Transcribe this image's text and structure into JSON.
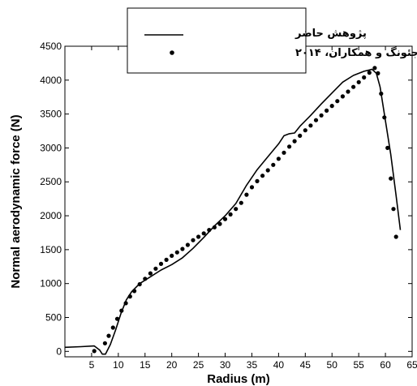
{
  "chart_data": {
    "type": "line",
    "xlabel": "Radius (m)",
    "ylabel": "Normal aerodynamic force (N)",
    "xlim": [
      0,
      65
    ],
    "ylim": [
      -80,
      4500
    ],
    "x_ticks": [
      5,
      10,
      15,
      20,
      25,
      30,
      35,
      40,
      45,
      50,
      55,
      60,
      65
    ],
    "y_ticks": [
      0,
      500,
      1000,
      1500,
      2000,
      2500,
      3000,
      3500,
      4000,
      4500
    ],
    "grid": false,
    "legend_position": "top-center",
    "series": [
      {
        "name": "پژوهش حاضر",
        "style": "line",
        "color": "#000000",
        "x": [
          0,
          3,
          5.5,
          6.5,
          7,
          7.6,
          8.5,
          9.5,
          10.5,
          11.5,
          12.5,
          14,
          16,
          18,
          20,
          22,
          24,
          26,
          28,
          30,
          32,
          34,
          36,
          38,
          40,
          41,
          42,
          43,
          44,
          46,
          48,
          50,
          52,
          54,
          56,
          57,
          57.5,
          58.3,
          59,
          60,
          61,
          62,
          62.8
        ],
        "values": [
          60,
          70,
          80,
          20,
          -40,
          -40,
          100,
          320,
          560,
          760,
          880,
          1000,
          1100,
          1200,
          1280,
          1380,
          1520,
          1680,
          1850,
          2000,
          2180,
          2450,
          2680,
          2870,
          3060,
          3180,
          3210,
          3220,
          3320,
          3480,
          3650,
          3810,
          3970,
          4070,
          4130,
          4150,
          4160,
          4100,
          3900,
          3400,
          2900,
          2300,
          1790
        ]
      },
      {
        "name": "جئونگ و همکاران، ۲۰۱۴",
        "style": "dots",
        "color": "#000000",
        "x": [
          5.5,
          7.5,
          8.2,
          9,
          9.8,
          10.6,
          11.4,
          12.2,
          13,
          14,
          15,
          16,
          17,
          18,
          19,
          20,
          21,
          22,
          23,
          24,
          25,
          26,
          27,
          28,
          29,
          30,
          31,
          32,
          33,
          34,
          35,
          36,
          37,
          38,
          39,
          40,
          41,
          42,
          43,
          44,
          45,
          46,
          47,
          48,
          49,
          50,
          51,
          52,
          53,
          54,
          55,
          56,
          57,
          58,
          58.6,
          59.2,
          59.8,
          60.4,
          61,
          61.5,
          62
        ],
        "values": [
          5,
          120,
          230,
          350,
          480,
          600,
          710,
          810,
          890,
          990,
          1070,
          1150,
          1220,
          1290,
          1350,
          1410,
          1460,
          1510,
          1570,
          1640,
          1690,
          1740,
          1790,
          1830,
          1880,
          1950,
          2020,
          2100,
          2190,
          2310,
          2420,
          2510,
          2590,
          2670,
          2750,
          2840,
          2930,
          3020,
          3100,
          3180,
          3260,
          3330,
          3410,
          3480,
          3550,
          3620,
          3690,
          3760,
          3830,
          3900,
          3970,
          4040,
          4110,
          4180,
          4100,
          3800,
          3450,
          3000,
          2550,
          2100,
          1690
        ]
      }
    ]
  }
}
